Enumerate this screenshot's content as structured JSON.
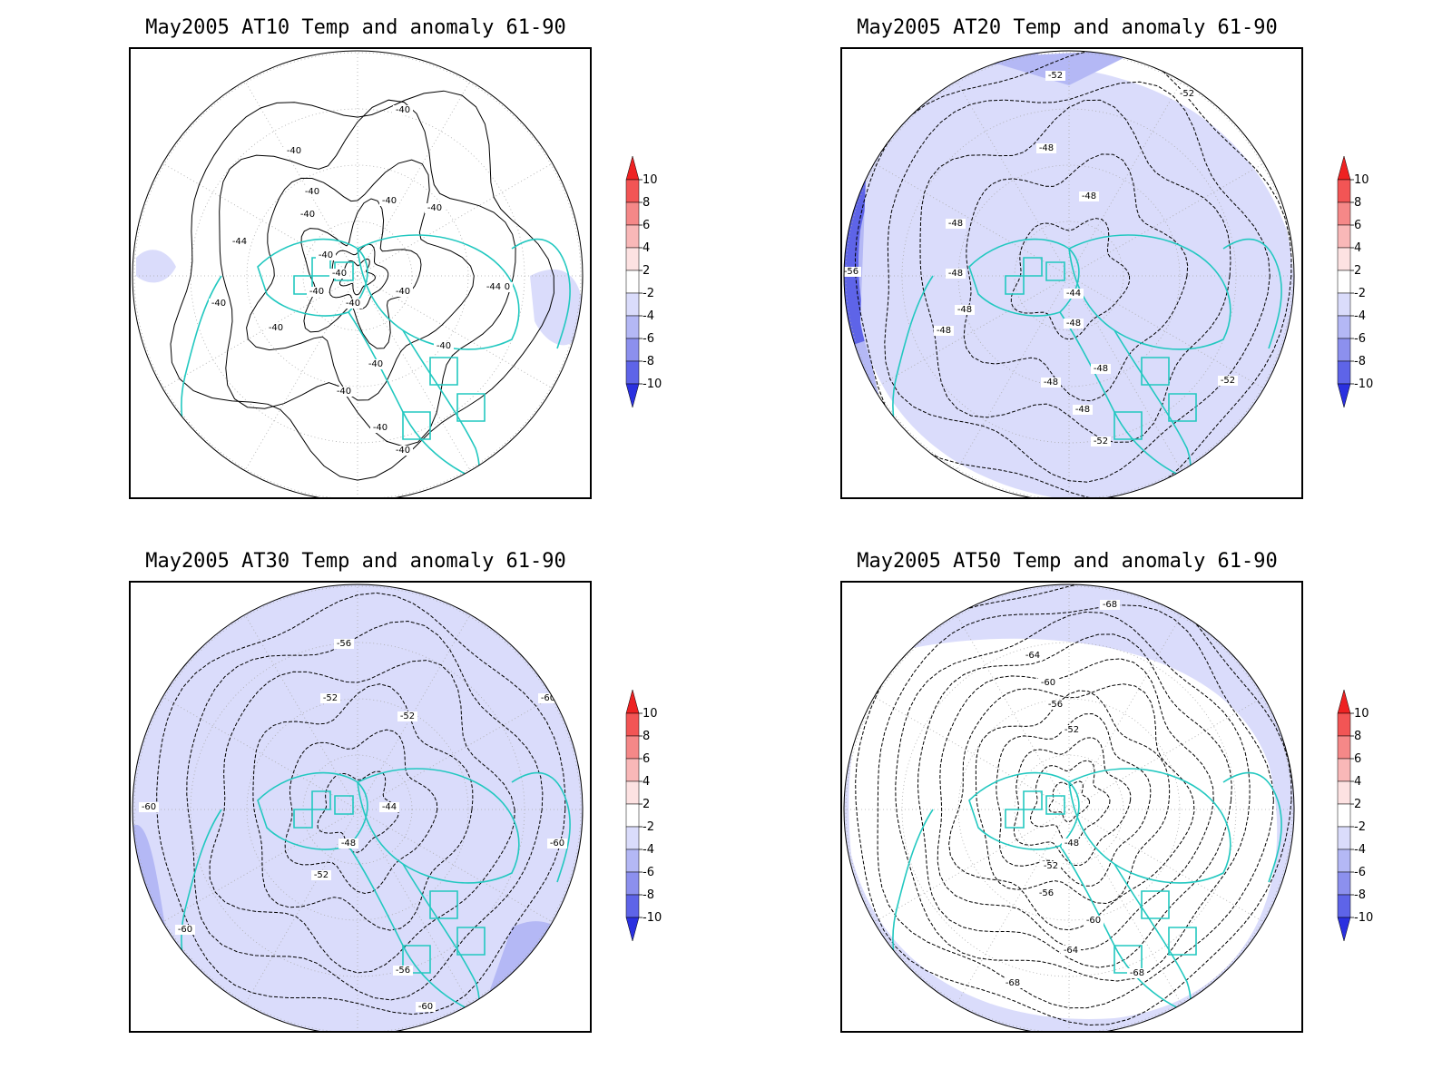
{
  "panels": [
    {
      "title": "May2005 AT10 Temp and anomaly 61-90",
      "contour_labels": [
        "-40",
        "-40",
        "-40",
        "-40",
        "-40",
        "-40",
        "-40",
        "-40",
        "-40",
        "-40",
        "-40",
        "-40",
        "-40",
        "-40",
        "-40",
        "-40",
        "-40",
        "-40",
        "-40",
        "-40",
        "-44",
        "-44"
      ]
    },
    {
      "title": "May2005 AT20 Temp and anomaly 61-90",
      "contour_labels": [
        "-52",
        "-52",
        "-48",
        "-48",
        "-48",
        "-48",
        "-48",
        "-48",
        "-44",
        "-48",
        "-48",
        "-48",
        "-48",
        "-52",
        "-52",
        "-56"
      ]
    },
    {
      "title": "May2005 AT30 Temp and anomaly 61-90",
      "contour_labels": [
        "-56",
        "-52",
        "-52",
        "-44",
        "-48",
        "-52",
        "-60",
        "-60",
        "-60",
        "-56",
        "-60",
        "-60"
      ]
    },
    {
      "title": "May2005 AT50 Temp and anomaly 61-90",
      "contour_labels": [
        "-68",
        "-64",
        "-60",
        "-56",
        "-52",
        "-48",
        "-52",
        "-56",
        "-60",
        "-64",
        "-68",
        "-68"
      ]
    }
  ],
  "colorbar": {
    "labels": [
      "10",
      "8",
      "6",
      "4",
      "2",
      "-2",
      "-4",
      "-6",
      "-8",
      "-10"
    ],
    "colors": [
      "#ee2222",
      "#f25555",
      "#f58888",
      "#f9b8b8",
      "#fde2e2",
      "#ffffff",
      "#dadcfb",
      "#b4b8f5",
      "#8c90ee",
      "#5e64e8",
      "#2a30e0"
    ]
  },
  "colors": {
    "coast": "#22c8c0",
    "anom_light": "#dadcfb",
    "anom_mid": "#b4b8f5",
    "anom_strong": "#8c90ee",
    "anom_deep": "#5e64e8"
  }
}
